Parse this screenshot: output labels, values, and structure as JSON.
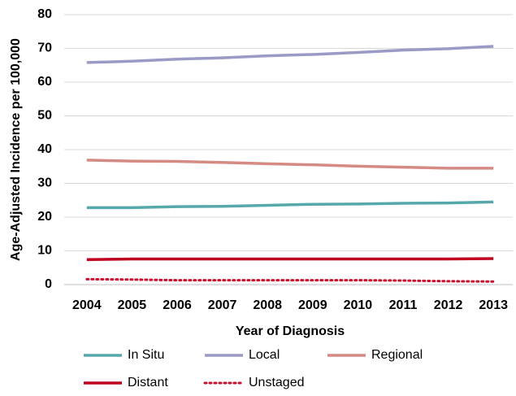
{
  "chart_data": {
    "type": "line",
    "x_label": "Year of Diagnosis",
    "y_label": "Age-Adjusted Incidence per 100,000",
    "categories": [
      "2004",
      "2005",
      "2006",
      "2007",
      "2008",
      "2009",
      "2010",
      "2011",
      "2012",
      "2013"
    ],
    "series": [
      {
        "name": "In Situ",
        "color": "#56a9aa",
        "style": "solid",
        "values": [
          22.8,
          22.8,
          23.1,
          23.2,
          23.5,
          23.8,
          23.9,
          24.1,
          24.2,
          24.5
        ]
      },
      {
        "name": "Local",
        "color": "#9a9ac6",
        "style": "solid",
        "values": [
          65.8,
          66.2,
          66.8,
          67.2,
          67.8,
          68.2,
          68.8,
          69.5,
          69.9,
          70.6
        ]
      },
      {
        "name": "Regional",
        "color": "#d68a84",
        "style": "solid",
        "values": [
          36.9,
          36.6,
          36.5,
          36.2,
          35.8,
          35.5,
          35.1,
          34.8,
          34.5,
          34.5
        ]
      },
      {
        "name": "Distant",
        "color": "#c0001f",
        "style": "solid",
        "values": [
          7.4,
          7.6,
          7.6,
          7.6,
          7.6,
          7.6,
          7.6,
          7.6,
          7.6,
          7.7
        ]
      },
      {
        "name": "Unstaged",
        "color": "#c8102e",
        "style": "dotted",
        "values": [
          1.6,
          1.5,
          1.3,
          1.3,
          1.3,
          1.3,
          1.3,
          1.2,
          1.0,
          0.9
        ]
      }
    ],
    "ylim": [
      0,
      80
    ],
    "yticks": [
      0,
      10,
      20,
      30,
      40,
      50,
      60,
      70,
      80
    ],
    "grid": true
  }
}
